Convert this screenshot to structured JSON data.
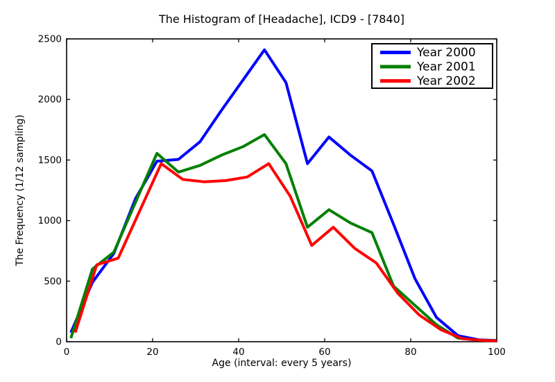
{
  "title": "The Histogram of [Headache], ICD9 - [7840]",
  "chart_data": {
    "type": "line",
    "title": "The Histogram of [Headache], ICD9 - [7840]",
    "xlabel": "Age (interval: every 5 years)",
    "ylabel": "The Frequency (1/12 sampling)",
    "xlim": [
      0,
      100
    ],
    "ylim": [
      0,
      2500
    ],
    "xticks": [
      0,
      20,
      40,
      60,
      80,
      100
    ],
    "yticks": [
      0,
      500,
      1000,
      1500,
      2000,
      2500
    ],
    "grid": false,
    "legend_position": "upper right",
    "background": "#ffffff",
    "axis_color": "#000000",
    "series": [
      {
        "name": "Year 2000",
        "color": "#0000ff",
        "points": [
          [
            1,
            75
          ],
          [
            6,
            490
          ],
          [
            11,
            730
          ],
          [
            16,
            1180
          ],
          [
            21,
            1490
          ],
          [
            26,
            1505
          ],
          [
            31,
            1650
          ],
          [
            36,
            1910
          ],
          [
            41,
            2160
          ],
          [
            46,
            2410
          ],
          [
            51,
            2140
          ],
          [
            56,
            1470
          ],
          [
            61,
            1690
          ],
          [
            66,
            1540
          ],
          [
            71,
            1410
          ],
          [
            76,
            970
          ],
          [
            81,
            520
          ],
          [
            86,
            200
          ],
          [
            91,
            50
          ],
          [
            96,
            15
          ],
          [
            100,
            10
          ]
        ]
      },
      {
        "name": "Year 2001",
        "color": "#008000",
        "points": [
          [
            1,
            30
          ],
          [
            6,
            600
          ],
          [
            11,
            740
          ],
          [
            16,
            1150
          ],
          [
            21,
            1555
          ],
          [
            26,
            1400
          ],
          [
            31,
            1455
          ],
          [
            36,
            1540
          ],
          [
            41,
            1610
          ],
          [
            46,
            1710
          ],
          [
            51,
            1470
          ],
          [
            56,
            945
          ],
          [
            61,
            1090
          ],
          [
            66,
            980
          ],
          [
            71,
            900
          ],
          [
            76,
            460
          ],
          [
            81,
            300
          ],
          [
            86,
            140
          ],
          [
            91,
            30
          ],
          [
            96,
            12
          ],
          [
            100,
            8
          ]
        ]
      },
      {
        "name": "Year 2002",
        "color": "#ff0000",
        "points": [
          [
            2,
            75
          ],
          [
            7,
            635
          ],
          [
            12,
            690
          ],
          [
            17,
            1080
          ],
          [
            22,
            1470
          ],
          [
            27,
            1340
          ],
          [
            32,
            1320
          ],
          [
            37,
            1330
          ],
          [
            42,
            1360
          ],
          [
            47,
            1470
          ],
          [
            52,
            1200
          ],
          [
            57,
            795
          ],
          [
            62,
            945
          ],
          [
            67,
            770
          ],
          [
            72,
            650
          ],
          [
            77,
            400
          ],
          [
            82,
            220
          ],
          [
            87,
            100
          ],
          [
            92,
            25
          ],
          [
            97,
            10
          ],
          [
            100,
            8
          ]
        ]
      }
    ]
  }
}
